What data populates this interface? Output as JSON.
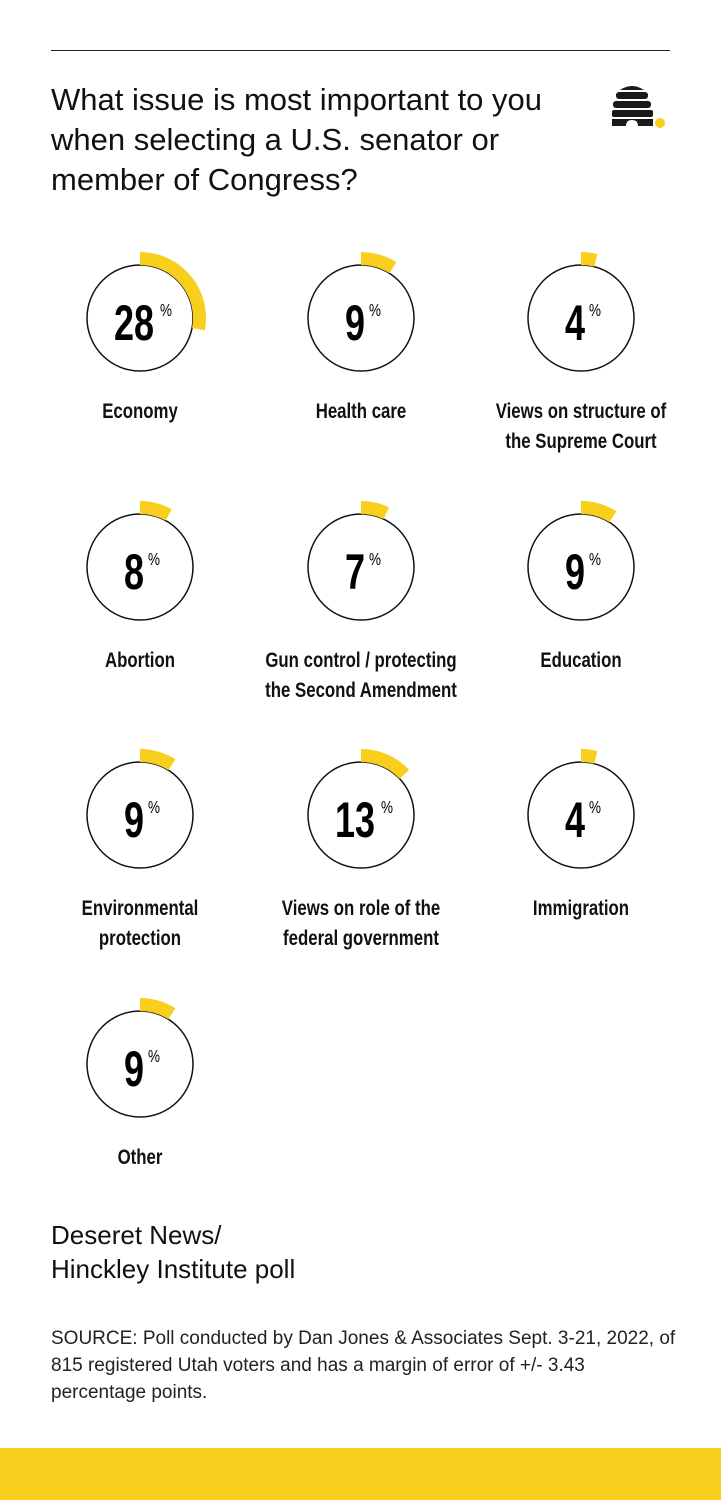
{
  "title": "What issue is most important to you when selecting a U.S. senator or member of Congress?",
  "poll_name": [
    "Deseret News/",
    "Hinckley Institute poll"
  ],
  "source": "SOURCE: Poll conducted by Dan Jones & Associates Sept. 3-21, 2022, of 815 registered Utah voters and has a margin of error of +/- 3.43 percentage points.",
  "colors": {
    "accent": "#f9cf1d",
    "text": "#111111"
  },
  "chart_data": {
    "type": "pie",
    "title": "What issue is most important to you when selecting a U.S. senator or member of Congress?",
    "unit": "%",
    "items": [
      {
        "label": "Economy",
        "value": 28
      },
      {
        "label": "Health care",
        "value": 9
      },
      {
        "label": "Views on structure of the Supreme Court",
        "value": 4
      },
      {
        "label": "Abortion",
        "value": 8
      },
      {
        "label": "Gun control / protecting the Second Amendment",
        "value": 7
      },
      {
        "label": "Education",
        "value": 9
      },
      {
        "label": "Environmental protection",
        "value": 9
      },
      {
        "label": "Views on role of the federal government",
        "value": 13
      },
      {
        "label": "Immigration",
        "value": 4
      },
      {
        "label": "Other",
        "value": 9
      }
    ]
  }
}
